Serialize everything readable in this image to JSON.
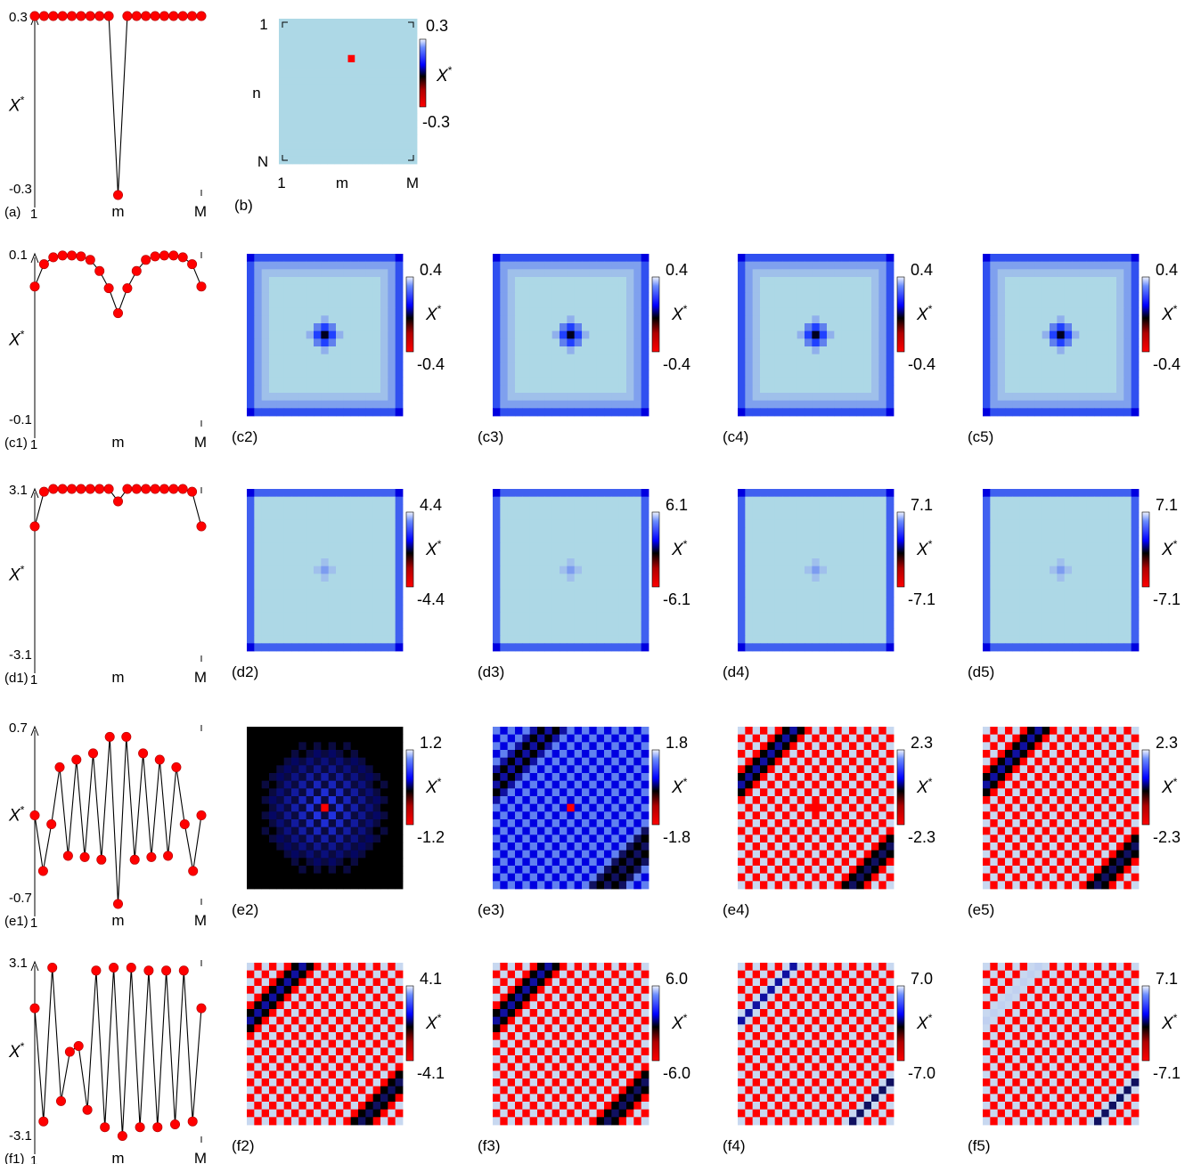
{
  "colors": {
    "background": "#add8e6",
    "blue": "#0000ff",
    "black": "#000000",
    "red": "#ff0000",
    "marker": "#ff0000",
    "line": "#000000"
  },
  "colorbar_label": "X*",
  "chart_data": [
    {
      "id": "a",
      "type": "line",
      "panel_label": "(a)",
      "ylabel": "X*",
      "ytick_top": "0.3",
      "ytick_bottom": "-0.3",
      "ylim": [
        -0.3,
        0.3
      ],
      "xtick_labels": [
        "1",
        "m",
        "M"
      ],
      "values": [
        0.3,
        0.3,
        0.3,
        0.3,
        0.3,
        0.3,
        0.3,
        0.3,
        0.3,
        -0.3,
        0.3,
        0.3,
        0.3,
        0.3,
        0.3,
        0.3,
        0.3,
        0.3,
        0.3
      ]
    },
    {
      "id": "b",
      "type": "heatmap",
      "panel_label": "(b)",
      "pattern": "single",
      "cbar_top": "0.3",
      "cbar_bottom": "-0.3",
      "xtick_labels": [
        "1",
        "m",
        "M"
      ],
      "ytick_labels": [
        "1",
        "n",
        "N"
      ]
    },
    {
      "id": "c1",
      "type": "line",
      "panel_label": "(c1)",
      "ylabel": "X*",
      "ytick_top": "0.1",
      "ytick_bottom": "-0.1",
      "ylim": [
        -0.1,
        0.1
      ],
      "xtick_labels": [
        "1",
        "m",
        "M"
      ],
      "values": [
        0.062,
        0.088,
        0.096,
        0.098,
        0.098,
        0.097,
        0.093,
        0.08,
        0.06,
        0.031,
        0.06,
        0.08,
        0.093,
        0.097,
        0.098,
        0.098,
        0.096,
        0.088,
        0.062
      ]
    },
    {
      "id": "c2",
      "type": "heatmap",
      "panel_label": "(c2)",
      "pattern": "border",
      "cbar_top": "0.4",
      "cbar_bottom": "-0.4"
    },
    {
      "id": "c3",
      "type": "heatmap",
      "panel_label": "(c3)",
      "pattern": "border",
      "cbar_top": "0.4",
      "cbar_bottom": "-0.4"
    },
    {
      "id": "c4",
      "type": "heatmap",
      "panel_label": "(c4)",
      "pattern": "border",
      "cbar_top": "0.4",
      "cbar_bottom": "-0.4"
    },
    {
      "id": "c5",
      "type": "heatmap",
      "panel_label": "(c5)",
      "pattern": "border",
      "cbar_top": "0.4",
      "cbar_bottom": "-0.4"
    },
    {
      "id": "d1",
      "type": "line",
      "panel_label": "(d1)",
      "ylabel": "X*",
      "ytick_top": "3.1",
      "ytick_bottom": "-3.1",
      "ylim": [
        -3.1,
        3.1
      ],
      "xtick_labels": [
        "1",
        "m",
        "M"
      ],
      "values": [
        1.75,
        3.0,
        3.1,
        3.1,
        3.1,
        3.1,
        3.1,
        3.1,
        3.1,
        2.65,
        3.1,
        3.1,
        3.1,
        3.1,
        3.1,
        3.1,
        3.1,
        3.0,
        1.75
      ]
    },
    {
      "id": "d2",
      "type": "heatmap",
      "panel_label": "(d2)",
      "pattern": "border-faint",
      "cbar_top": "4.4",
      "cbar_bottom": "-4.4"
    },
    {
      "id": "d3",
      "type": "heatmap",
      "panel_label": "(d3)",
      "pattern": "border-faint",
      "cbar_top": "6.1",
      "cbar_bottom": "-6.1"
    },
    {
      "id": "d4",
      "type": "heatmap",
      "panel_label": "(d4)",
      "pattern": "border-faint",
      "cbar_top": "7.1",
      "cbar_bottom": "-7.1"
    },
    {
      "id": "d5",
      "type": "heatmap",
      "panel_label": "(d5)",
      "pattern": "border-faint",
      "cbar_top": "7.1",
      "cbar_bottom": "-7.1"
    },
    {
      "id": "e1",
      "type": "line",
      "panel_label": "(e1)",
      "ylabel": "X*",
      "ytick_top": "0.7",
      "ytick_bottom": "-0.7",
      "ylim": [
        -0.7,
        0.7
      ],
      "xtick_labels": [
        "1",
        "m",
        "M"
      ],
      "values": [
        0.0,
        -0.44,
        -0.07,
        0.38,
        -0.32,
        0.44,
        -0.33,
        0.49,
        -0.35,
        0.62,
        -0.7,
        0.62,
        -0.35,
        0.49,
        -0.33,
        0.44,
        -0.32,
        0.38,
        -0.07,
        -0.44,
        0.0
      ]
    },
    {
      "id": "e2",
      "type": "heatmap",
      "panel_label": "(e2)",
      "pattern": "e2",
      "cbar_top": "1.2",
      "cbar_bottom": "-1.2"
    },
    {
      "id": "e3",
      "type": "heatmap",
      "panel_label": "(e3)",
      "pattern": "e3",
      "cbar_top": "1.8",
      "cbar_bottom": "-1.8"
    },
    {
      "id": "e4",
      "type": "heatmap",
      "panel_label": "(e4)",
      "pattern": "e4",
      "cbar_top": "2.3",
      "cbar_bottom": "-2.3"
    },
    {
      "id": "e5",
      "type": "heatmap",
      "panel_label": "(e5)",
      "pattern": "e5",
      "cbar_top": "2.3",
      "cbar_bottom": "-2.3"
    },
    {
      "id": "f1",
      "type": "line",
      "panel_label": "(f1)",
      "ylabel": "X*",
      "ytick_top": "3.1",
      "ytick_bottom": "-3.1",
      "ylim": [
        -3.1,
        3.1
      ],
      "xtick_labels": [
        "1",
        "m",
        "M"
      ],
      "values": [
        1.5,
        -2.4,
        2.9,
        -1.7,
        0.0,
        0.2,
        -2.0,
        2.8,
        -2.6,
        2.9,
        -2.9,
        2.9,
        -2.6,
        2.8,
        -2.6,
        2.8,
        -2.5,
        2.8,
        -2.4,
        1.5
      ]
    },
    {
      "id": "f2",
      "type": "heatmap",
      "panel_label": "(f2)",
      "pattern": "f2",
      "cbar_top": "4.1",
      "cbar_bottom": "-4.1"
    },
    {
      "id": "f3",
      "type": "heatmap",
      "panel_label": "(f3)",
      "pattern": "f3",
      "cbar_top": "6.0",
      "cbar_bottom": "-6.0"
    },
    {
      "id": "f4",
      "type": "heatmap",
      "panel_label": "(f4)",
      "pattern": "f4",
      "cbar_top": "7.0",
      "cbar_bottom": "-7.0"
    },
    {
      "id": "f5",
      "type": "heatmap",
      "panel_label": "(f5)",
      "pattern": "f5",
      "cbar_top": "7.1",
      "cbar_bottom": "-7.1"
    }
  ]
}
